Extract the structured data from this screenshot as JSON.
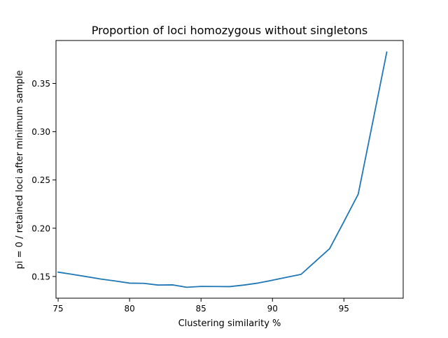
{
  "chart_data": {
    "type": "line",
    "title": "Proportion of loci homozygous without singletons",
    "xlabel": "Clustering similarity %",
    "ylabel": "pi = 0 / retained loci after minimum sample",
    "xlim": [
      74.85,
      99.15
    ],
    "ylim": [
      0.1275,
      0.3945
    ],
    "x_ticks": [
      75,
      80,
      85,
      90,
      95
    ],
    "x_tick_labels": [
      "75",
      "80",
      "85",
      "90",
      "95"
    ],
    "y_ticks": [
      0.15,
      0.2,
      0.25,
      0.3,
      0.35
    ],
    "y_tick_labels": [
      "0.15",
      "0.20",
      "0.25",
      "0.30",
      "0.35"
    ],
    "grid": false,
    "series": [
      {
        "color": "#1f77b4",
        "x": [
          75,
          76,
          77,
          78,
          79,
          80,
          81,
          82,
          83,
          84,
          85,
          86,
          87,
          88,
          89,
          90,
          91,
          92,
          93,
          94,
          95,
          96,
          97,
          98
        ],
        "y": [
          0.1545,
          0.1522,
          0.1498,
          0.1473,
          0.1453,
          0.1431,
          0.1429,
          0.1411,
          0.1413,
          0.1388,
          0.1397,
          0.1396,
          0.1395,
          0.1411,
          0.1432,
          0.1461,
          0.1492,
          0.1522,
          0.1655,
          0.1788,
          0.2068,
          0.2352,
          0.3086,
          0.3825
        ]
      }
    ]
  }
}
